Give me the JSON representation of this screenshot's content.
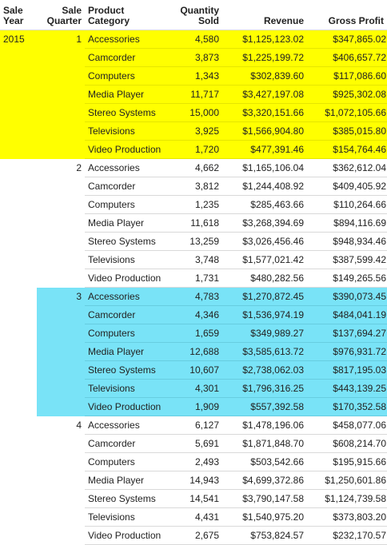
{
  "headers": {
    "year": [
      "Sale",
      "Year"
    ],
    "quarter": [
      "Sale",
      "Quarter"
    ],
    "category": [
      "Product",
      "Category"
    ],
    "quantity": [
      "Quantity",
      "Sold"
    ],
    "revenue": "Revenue",
    "profit": "Gross Profit"
  },
  "colors": {
    "highlight_yellow": "#ffff00",
    "highlight_cyan": "#79e3f7"
  },
  "year": "2015",
  "groups": [
    {
      "quarter": "1",
      "highlight": "yellow",
      "rows": [
        {
          "category": "Accessories",
          "quantity": "4,580",
          "revenue": "$1,125,123.02",
          "profit": "$347,865.02"
        },
        {
          "category": "Camcorder",
          "quantity": "3,873",
          "revenue": "$1,225,199.72",
          "profit": "$406,657.72"
        },
        {
          "category": "Computers",
          "quantity": "1,343",
          "revenue": "$302,839.60",
          "profit": "$117,086.60"
        },
        {
          "category": "Media Player",
          "quantity": "11,717",
          "revenue": "$3,427,197.08",
          "profit": "$925,302.08"
        },
        {
          "category": "Stereo Systems",
          "quantity": "15,000",
          "revenue": "$3,320,151.66",
          "profit": "$1,072,105.66"
        },
        {
          "category": "Televisions",
          "quantity": "3,925",
          "revenue": "$1,566,904.80",
          "profit": "$385,015.80"
        },
        {
          "category": "Video Production",
          "quantity": "1,720",
          "revenue": "$477,391.46",
          "profit": "$154,764.46"
        }
      ]
    },
    {
      "quarter": "2",
      "highlight": "none",
      "rows": [
        {
          "category": "Accessories",
          "quantity": "4,662",
          "revenue": "$1,165,106.04",
          "profit": "$362,612.04"
        },
        {
          "category": "Camcorder",
          "quantity": "3,812",
          "revenue": "$1,244,408.92",
          "profit": "$409,405.92"
        },
        {
          "category": "Computers",
          "quantity": "1,235",
          "revenue": "$285,463.66",
          "profit": "$110,264.66"
        },
        {
          "category": "Media Player",
          "quantity": "11,618",
          "revenue": "$3,268,394.69",
          "profit": "$894,116.69"
        },
        {
          "category": "Stereo Systems",
          "quantity": "13,259",
          "revenue": "$3,026,456.46",
          "profit": "$948,934.46"
        },
        {
          "category": "Televisions",
          "quantity": "3,748",
          "revenue": "$1,577,021.42",
          "profit": "$387,599.42"
        },
        {
          "category": "Video Production",
          "quantity": "1,731",
          "revenue": "$480,282.56",
          "profit": "$149,265.56"
        }
      ]
    },
    {
      "quarter": "3",
      "highlight": "cyan",
      "rows": [
        {
          "category": "Accessories",
          "quantity": "4,783",
          "revenue": "$1,270,872.45",
          "profit": "$390,073.45"
        },
        {
          "category": "Camcorder",
          "quantity": "4,346",
          "revenue": "$1,536,974.19",
          "profit": "$484,041.19"
        },
        {
          "category": "Computers",
          "quantity": "1,659",
          "revenue": "$349,989.27",
          "profit": "$137,694.27"
        },
        {
          "category": "Media Player",
          "quantity": "12,688",
          "revenue": "$3,585,613.72",
          "profit": "$976,931.72"
        },
        {
          "category": "Stereo Systems",
          "quantity": "10,607",
          "revenue": "$2,738,062.03",
          "profit": "$817,195.03"
        },
        {
          "category": "Televisions",
          "quantity": "4,301",
          "revenue": "$1,796,316.25",
          "profit": "$443,139.25"
        },
        {
          "category": "Video Production",
          "quantity": "1,909",
          "revenue": "$557,392.58",
          "profit": "$170,352.58"
        }
      ]
    },
    {
      "quarter": "4",
      "highlight": "none",
      "rows": [
        {
          "category": "Accessories",
          "quantity": "6,127",
          "revenue": "$1,478,196.06",
          "profit": "$458,077.06"
        },
        {
          "category": "Camcorder",
          "quantity": "5,691",
          "revenue": "$1,871,848.70",
          "profit": "$608,214.70"
        },
        {
          "category": "Computers",
          "quantity": "2,493",
          "revenue": "$503,542.66",
          "profit": "$195,915.66"
        },
        {
          "category": "Media Player",
          "quantity": "14,943",
          "revenue": "$4,699,372.86",
          "profit": "$1,250,601.86"
        },
        {
          "category": "Stereo Systems",
          "quantity": "14,541",
          "revenue": "$3,790,147.58",
          "profit": "$1,124,739.58"
        },
        {
          "category": "Televisions",
          "quantity": "4,431",
          "revenue": "$1,540,975.20",
          "profit": "$373,803.20"
        },
        {
          "category": "Video Production",
          "quantity": "2,675",
          "revenue": "$753,824.57",
          "profit": "$232,170.57"
        }
      ]
    }
  ]
}
